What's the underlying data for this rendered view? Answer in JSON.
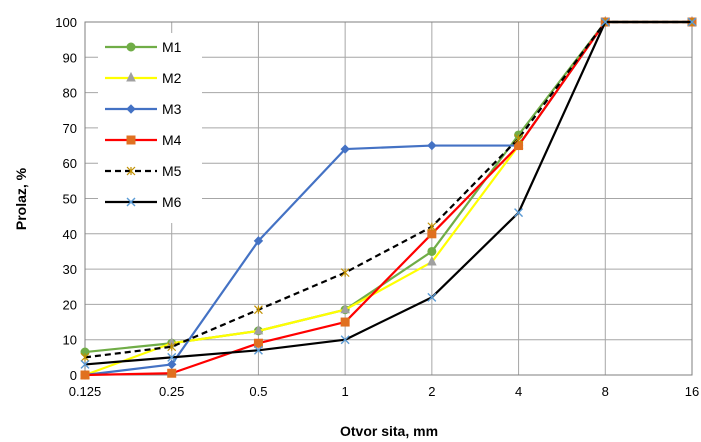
{
  "chart_data": {
    "type": "line",
    "title": "",
    "xlabel": "Otvor sita, mm",
    "ylabel": "Prolaz, %",
    "categories": [
      "0.125",
      "0.25",
      "0.5",
      "1",
      "2",
      "4",
      "8",
      "16"
    ],
    "ylim": [
      0,
      100
    ],
    "yticks": [
      "0",
      "10",
      "20",
      "30",
      "40",
      "50",
      "60",
      "70",
      "80",
      "90",
      "100"
    ],
    "grid": true,
    "legend_position": "top-left",
    "series": [
      {
        "name": "M1",
        "color": "#70AD47",
        "marker": "circle",
        "dash": "solid",
        "values": [
          6.5,
          9,
          12.5,
          18.5,
          35,
          68,
          100,
          100
        ]
      },
      {
        "name": "M2",
        "color": "#FFFF00",
        "marker": "triangle",
        "dash": "solid",
        "values": [
          0,
          9,
          12.5,
          18.5,
          32,
          65,
          100,
          100
        ]
      },
      {
        "name": "M3",
        "color": "#4472C4",
        "marker": "diamond",
        "dash": "solid",
        "values": [
          0,
          3,
          38,
          64,
          65,
          65,
          100,
          100
        ]
      },
      {
        "name": "M4",
        "color": "#FF0000",
        "marker": "square",
        "dash": "solid",
        "values": [
          0,
          0.5,
          9,
          15,
          40,
          65,
          100,
          100
        ]
      },
      {
        "name": "M5",
        "color": "#000000",
        "marker": "star",
        "dash": "dashed",
        "values": [
          5,
          8,
          18.5,
          29,
          42,
          67,
          100,
          100
        ]
      },
      {
        "name": "M6",
        "color": "#000000",
        "marker": "x",
        "dash": "solid",
        "values": [
          3,
          5,
          7,
          10,
          22,
          46,
          100,
          100
        ]
      }
    ]
  }
}
